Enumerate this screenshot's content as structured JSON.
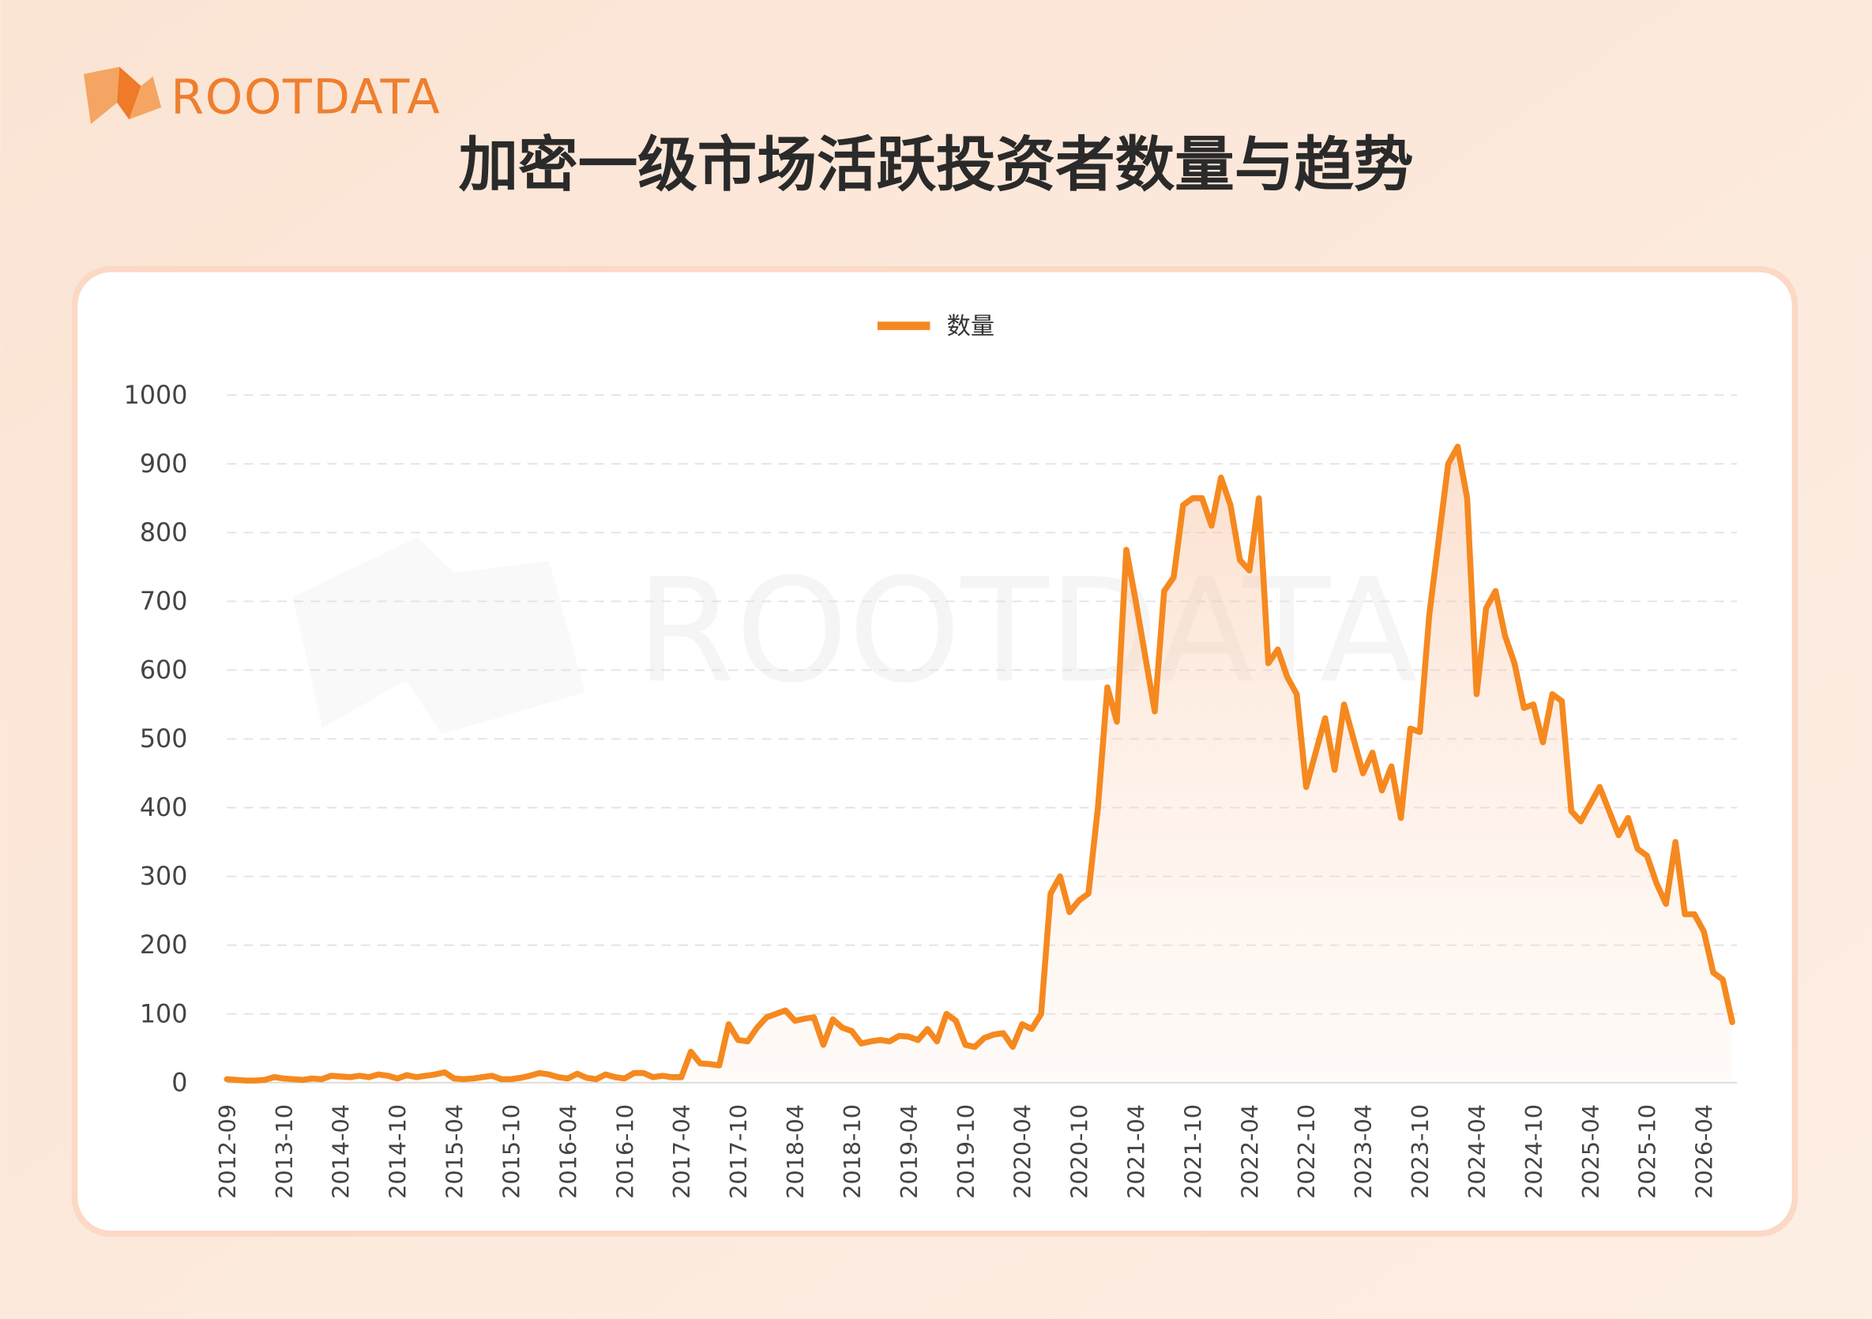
{
  "header": {
    "logo": "ROOTDATA",
    "title": "加密一级市场活跃投资者数量与趋势"
  },
  "chart_data": {
    "type": "line",
    "watermark": "ROOTDATA",
    "categories": [
      "2012-09",
      null,
      null,
      null,
      null,
      null,
      "2013-10",
      null,
      null,
      null,
      null,
      null,
      "2014-04",
      null,
      null,
      null,
      null,
      null,
      "2014-10",
      null,
      null,
      null,
      null,
      null,
      "2015-04",
      null,
      null,
      null,
      null,
      null,
      "2015-10",
      null,
      null,
      null,
      null,
      null,
      "2016-04",
      null,
      null,
      null,
      null,
      null,
      "2016-10",
      null,
      null,
      null,
      null,
      null,
      "2017-04",
      null,
      null,
      null,
      null,
      null,
      "2017-10",
      null,
      null,
      null,
      null,
      null,
      "2018-04",
      null,
      null,
      null,
      null,
      null,
      "2018-10",
      null,
      null,
      null,
      null,
      null,
      "2019-04",
      null,
      null,
      null,
      null,
      null,
      "2019-10",
      null,
      null,
      null,
      null,
      null,
      "2020-04",
      null,
      null,
      null,
      null,
      null,
      "2020-10",
      null,
      null,
      null,
      null,
      null,
      "2021-04",
      null,
      null,
      null,
      null,
      null,
      "2021-10",
      null,
      null,
      null,
      null,
      null,
      "2022-04",
      null,
      null,
      null,
      null,
      null,
      "2022-10",
      null,
      null,
      null,
      null,
      null,
      "2023-04",
      null,
      null,
      null,
      null,
      null,
      "2023-10",
      null,
      null,
      null,
      null,
      null,
      "2024-04",
      null,
      null,
      null,
      null,
      null,
      "2024-10",
      null,
      null,
      null,
      null,
      null,
      "2025-04",
      null,
      null,
      null,
      null,
      null,
      "2025-10",
      null,
      null,
      null,
      null,
      null,
      "2026-04",
      null,
      null,
      null
    ],
    "series": [
      {
        "name": "数量",
        "color": "#f5891f",
        "values": [
          5,
          4,
          3,
          3,
          4,
          8,
          6,
          5,
          4,
          6,
          5,
          10,
          9,
          8,
          10,
          8,
          12,
          10,
          6,
          11,
          8,
          10,
          12,
          15,
          6,
          5,
          6,
          8,
          10,
          5,
          5,
          7,
          10,
          14,
          12,
          8,
          6,
          13,
          7,
          5,
          12,
          8,
          6,
          14,
          14,
          8,
          10,
          8,
          8,
          45,
          28,
          27,
          25,
          85,
          62,
          60,
          80,
          95,
          100,
          105,
          90,
          93,
          95,
          55,
          92,
          80,
          75,
          57,
          60,
          62,
          60,
          68,
          67,
          62,
          78,
          60,
          100,
          90,
          55,
          52,
          65,
          70,
          72,
          52,
          85,
          78,
          100,
          275,
          300,
          248,
          265,
          275,
          400,
          575,
          525,
          775,
          700,
          620,
          540,
          715,
          735,
          840,
          850,
          850,
          810,
          880,
          840,
          760,
          745,
          850,
          610,
          630,
          590,
          565,
          430,
          480,
          530,
          455,
          550,
          500,
          450,
          480,
          425,
          460,
          385,
          515,
          510,
          680,
          790,
          900,
          925,
          850,
          565,
          690,
          715,
          650,
          610,
          545,
          550,
          495,
          565,
          555,
          395,
          380,
          405,
          430,
          395,
          360,
          385,
          340,
          330,
          290,
          260,
          350,
          245,
          245,
          220,
          160,
          150,
          88
        ]
      }
    ],
    "ylim": [
      0,
      1000
    ],
    "yticks": [
      0,
      100,
      200,
      300,
      400,
      500,
      600,
      700,
      800,
      900,
      1000
    ],
    "grid": true,
    "legend": "top"
  }
}
